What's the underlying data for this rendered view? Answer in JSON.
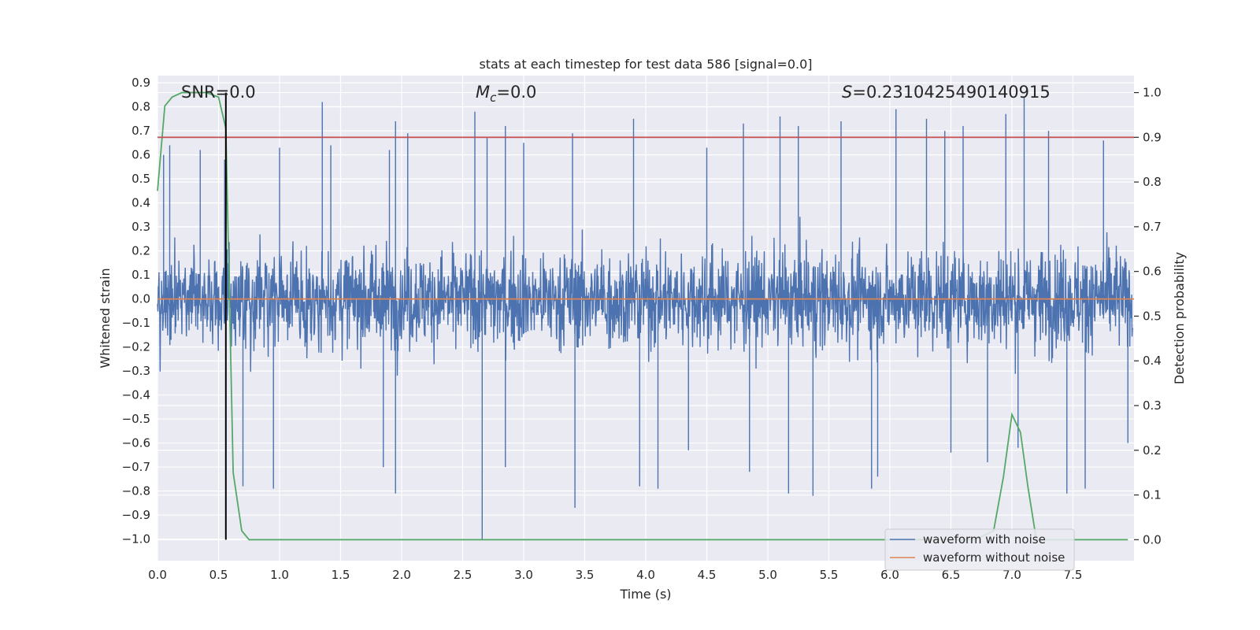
{
  "chart_data": {
    "type": "line",
    "title": "stats at each timestep for test data 586 [signal=0.0]",
    "xlabel": "Time (s)",
    "ylabel_left": "Whitened strain",
    "ylabel_right": "Detection probability",
    "xlim": [
      0.0,
      8.0
    ],
    "ylim_left": [
      -1.09,
      0.93
    ],
    "ylim_right": [
      -0.047,
      1.038
    ],
    "x_ticks": [
      0.0,
      0.5,
      1.0,
      1.5,
      2.0,
      2.5,
      3.0,
      3.5,
      4.0,
      4.5,
      5.0,
      5.5,
      6.0,
      6.5,
      7.0,
      7.5
    ],
    "x_tick_labels": [
      "0.0",
      "0.5",
      "1.0",
      "1.5",
      "2.0",
      "2.5",
      "3.0",
      "3.5",
      "4.0",
      "4.5",
      "5.0",
      "5.5",
      "6.0",
      "6.5",
      "7.0",
      "7.5"
    ],
    "y_left_ticks": [
      0.9,
      0.8,
      0.7,
      0.6,
      0.5,
      0.4,
      0.3,
      0.2,
      0.1,
      0.0,
      -0.1,
      -0.2,
      -0.3,
      -0.4,
      -0.5,
      -0.6,
      -0.7,
      -0.8,
      -0.9,
      -1.0
    ],
    "y_left_tick_labels": [
      "0.9",
      "0.8",
      "0.7",
      "0.6",
      "0.5",
      "0.4",
      "0.3",
      "0.2",
      "0.1",
      "0.0",
      "−0.1",
      "−0.2",
      "−0.3",
      "−0.4",
      "−0.5",
      "−0.6",
      "−0.7",
      "−0.8",
      "−0.9",
      "−1.0"
    ],
    "y_right_ticks": [
      1.0,
      0.9,
      0.8,
      0.7,
      0.6,
      0.5,
      0.4,
      0.3,
      0.2,
      0.1,
      0.0
    ],
    "y_right_tick_labels": [
      "1.0",
      "0.9",
      "0.8",
      "0.7",
      "0.6",
      "0.5",
      "0.4",
      "0.3",
      "0.2",
      "0.1",
      "0.0"
    ],
    "annotations": {
      "snr": "SNR=0.0",
      "mc_symbol": "M",
      "mc_sub": "c",
      "mc_value": "=0.0",
      "s_symbol": "S",
      "s_value": "=0.2310425490140915"
    },
    "series": [
      {
        "name": "waveform with noise",
        "color": "#4c72b0",
        "axis": "left",
        "description": "whitened noise samples, dense band roughly between -0.4 and 0.4 with spikes to about 0.82 and -1.0"
      },
      {
        "name": "waveform without noise",
        "color": "#dd8452",
        "axis": "left",
        "x": [
          0.0,
          8.0
        ],
        "y": [
          0.0,
          0.0
        ]
      },
      {
        "name": "detection probability",
        "color": "#55a868",
        "axis": "right",
        "x": [
          0.0,
          0.06,
          0.12,
          0.2,
          0.3,
          0.4,
          0.5,
          0.56,
          0.62,
          0.69,
          0.75,
          0.85,
          1.0,
          2.0,
          3.0,
          4.0,
          5.0,
          6.0,
          6.7,
          6.85,
          6.93,
          7.0,
          7.07,
          7.13,
          7.2,
          7.5,
          7.95
        ],
        "y": [
          0.78,
          0.97,
          0.99,
          1.0,
          1.0,
          1.0,
          0.99,
          0.92,
          0.15,
          0.02,
          0.0,
          0.0,
          0.0,
          0.0,
          0.0,
          0.0,
          0.0,
          0.0,
          0.0,
          0.02,
          0.14,
          0.28,
          0.24,
          0.12,
          0.0,
          0.0,
          0.0
        ]
      },
      {
        "name": "threshold",
        "color": "#c44e52",
        "axis": "right",
        "x": [
          0.0,
          8.0
        ],
        "y": [
          0.9,
          0.9
        ]
      },
      {
        "name": "marker",
        "color": "#000000",
        "axis": "right",
        "x": [
          0.56,
          0.56
        ],
        "y": [
          0.0,
          1.0
        ]
      }
    ],
    "legend_position": "lower right",
    "legend": [
      "waveform with noise",
      "waveform without noise"
    ],
    "grid": true,
    "plot_background": "#eaeaf2"
  }
}
